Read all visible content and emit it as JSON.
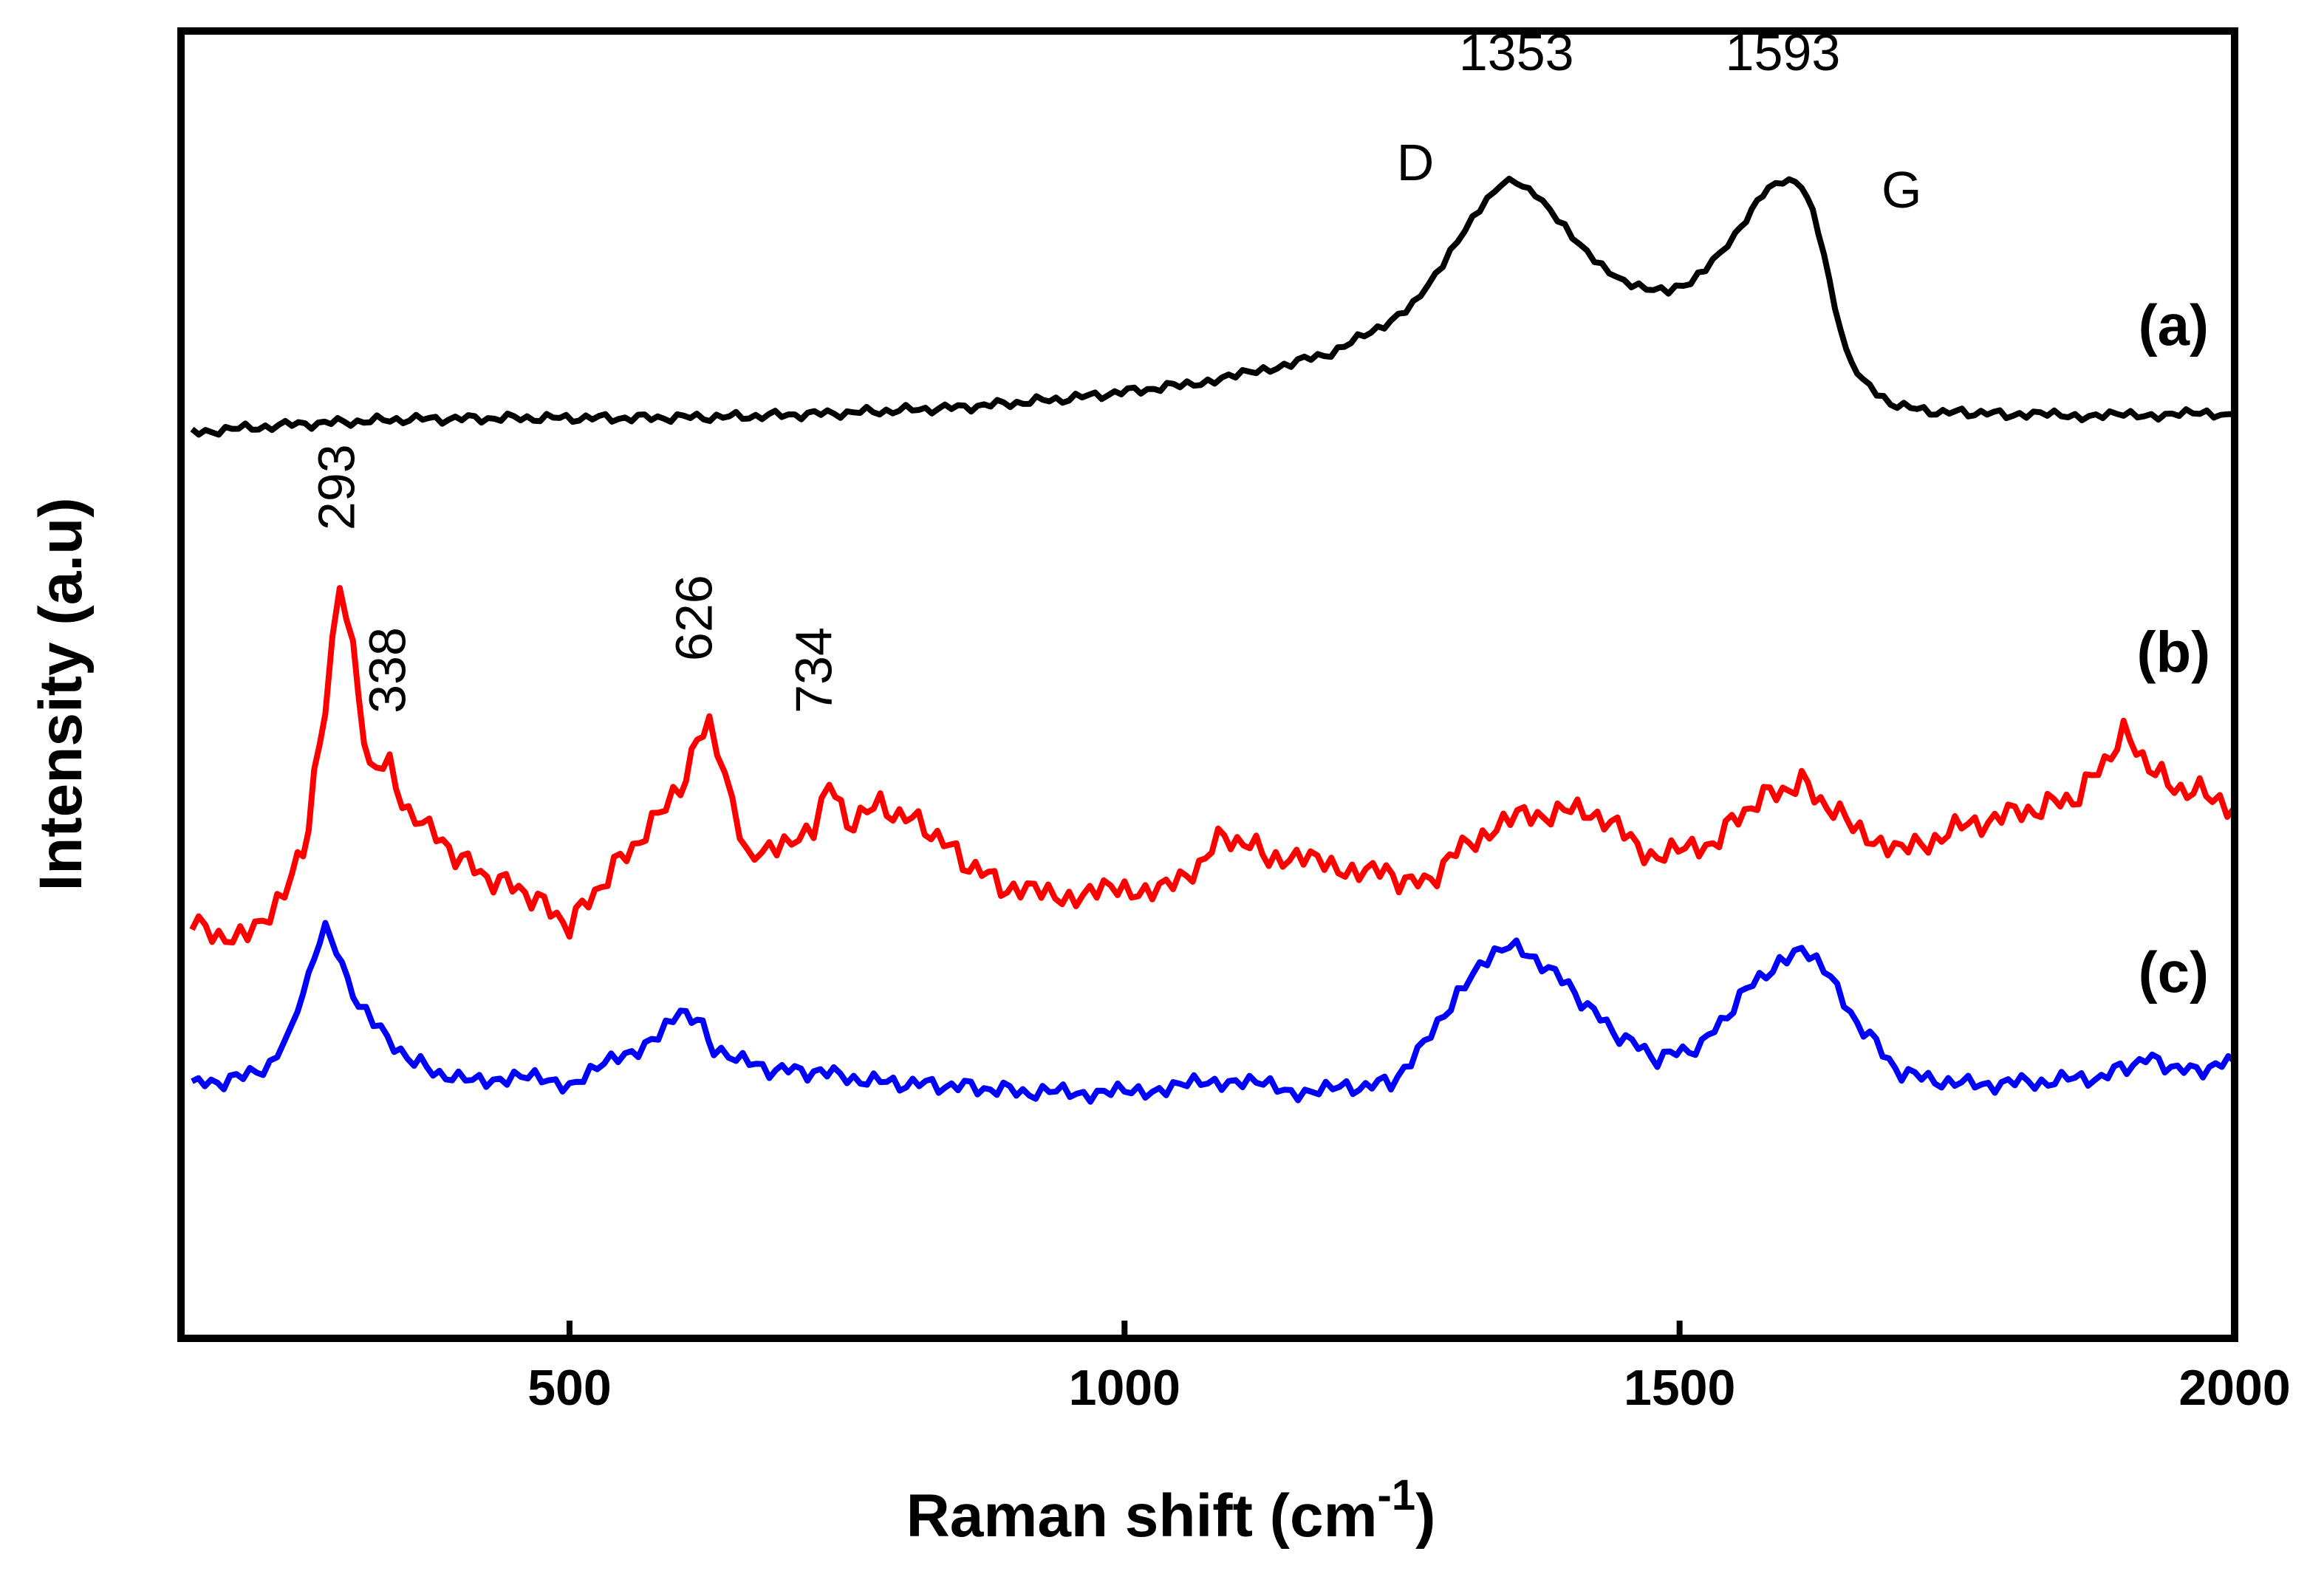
{
  "chart_data": {
    "type": "line",
    "title": "",
    "xlabel": "Raman shift (cm",
    "xlabel_superscript": "-1",
    "xlabel_close": ")",
    "ylabel": "Intensity (a.u)",
    "xlim": [
      150,
      2000
    ],
    "ylim": [
      0,
      100
    ],
    "yticks_visible": false,
    "grid": false,
    "x_ticks": [
      {
        "value": 500,
        "label": "500"
      },
      {
        "value": 1000,
        "label": "1000"
      },
      {
        "value": 1500,
        "label": "1500"
      },
      {
        "value": 2000,
        "label": "2000"
      }
    ],
    "series": [
      {
        "name": "(a)",
        "color": "#000000",
        "x": [
          160,
          250,
          350,
          450,
          550,
          650,
          750,
          850,
          950,
          1050,
          1100,
          1150,
          1180,
          1210,
          1240,
          1260,
          1280,
          1300,
          1320,
          1340,
          1353,
          1370,
          1390,
          1410,
          1430,
          1450,
          1470,
          1490,
          1510,
          1530,
          1550,
          1565,
          1580,
          1593,
          1610,
          1620,
          1630,
          1640,
          1650,
          1665,
          1690,
          1720,
          1760,
          1800,
          1850,
          1900,
          1950,
          2000
        ],
        "values": [
          69.3,
          69.9,
          70.3,
          70.4,
          70.4,
          70.5,
          70.8,
          71.2,
          71.9,
          72.9,
          73.6,
          74.6,
          75.2,
          76.4,
          77.9,
          79.1,
          81.2,
          83.8,
          86.3,
          88.3,
          88.6,
          87.5,
          85.5,
          83.5,
          81.9,
          80.8,
          80.4,
          80.3,
          80.9,
          82.5,
          84.3,
          86.3,
          88.1,
          88.7,
          88.1,
          86.3,
          82.9,
          78.9,
          75.5,
          73.2,
          71.6,
          70.9,
          70.8,
          70.7,
          70.6,
          70.6,
          70.7,
          70.7
        ]
      },
      {
        "name": "(b)",
        "color": "#ff0000",
        "x": [
          160,
          190,
          210,
          230,
          250,
          265,
          280,
          293,
          305,
          320,
          338,
          355,
          380,
          420,
          460,
          500,
          540,
          580,
          600,
          615,
          626,
          640,
          660,
          680,
          700,
          720,
          734,
          750,
          780,
          820,
          860,
          900,
          950,
          1000,
          1050,
          1090,
          1130,
          1180,
          1230,
          1270,
          1310,
          1360,
          1420,
          1480,
          1530,
          1570,
          1610,
          1650,
          1700,
          1760,
          1820,
          1860,
          1900,
          1940,
          1980,
          2000
        ],
        "values": [
          31.6,
          30.8,
          31.3,
          32.2,
          35.0,
          39.2,
          48.8,
          58.0,
          52.3,
          43.4,
          43.7,
          40.2,
          38.3,
          35.5,
          34.2,
          31.6,
          36.0,
          39.8,
          42.0,
          45.6,
          47.3,
          43.5,
          37.2,
          37.8,
          38.1,
          38.8,
          42.5,
          39.5,
          40.7,
          39.2,
          36.2,
          34.2,
          33.9,
          34.3,
          34.7,
          38.5,
          37.0,
          36.3,
          35.6,
          34.7,
          38.1,
          40.0,
          40.4,
          36.7,
          38.0,
          41.2,
          42.5,
          39.5,
          37.2,
          39.3,
          40.5,
          41.5,
          46.2,
          42.3,
          41.5,
          40.6
        ]
      },
      {
        "name": "(c)",
        "color": "#0000ff",
        "x": [
          160,
          200,
          230,
          250,
          265,
          280,
          295,
          310,
          330,
          360,
          400,
          450,
          500,
          550,
          580,
          600,
          615,
          630,
          650,
          680,
          720,
          780,
          850,
          920,
          1000,
          1050,
          1100,
          1150,
          1200,
          1240,
          1270,
          1300,
          1320,
          1340,
          1353,
          1370,
          1400,
          1440,
          1480,
          1520,
          1560,
          1590,
          1610,
          1630,
          1660,
          1700,
          1760,
          1820,
          1880,
          1920,
          1960,
          2000
        ],
        "values": [
          19.4,
          19.8,
          21.0,
          23.8,
          27.8,
          31.6,
          28.6,
          25.3,
          23.5,
          21.1,
          19.7,
          20.0,
          19.5,
          21.7,
          23.0,
          24.8,
          24.5,
          22.2,
          21.3,
          20.6,
          20.4,
          19.6,
          19.3,
          18.8,
          18.8,
          19.3,
          19.8,
          18.9,
          19.1,
          19.6,
          22.4,
          26.5,
          28.5,
          29.7,
          29.8,
          29.1,
          26.9,
          23.5,
          21.4,
          22.4,
          26.6,
          28.9,
          29.8,
          28.2,
          24.2,
          20.2,
          19.4,
          19.6,
          20.0,
          21.4,
          20.4,
          21.2
        ]
      }
    ],
    "series_labels": [
      {
        "text": "(a)",
        "x": 1945,
        "y": 76.0
      },
      {
        "text": "(b)",
        "x": 1945,
        "y": 51.0
      },
      {
        "text": "(c)",
        "x": 1945,
        "y": 26.5
      }
    ],
    "annotations": [
      {
        "text": "1353",
        "x": 1353,
        "y": 97.0,
        "rotate": false
      },
      {
        "text": "1593",
        "x": 1593,
        "y": 97.0,
        "rotate": false
      },
      {
        "text": "D",
        "x": 1262,
        "y": 88.6,
        "rotate": false
      },
      {
        "text": "G",
        "x": 1700,
        "y": 86.5,
        "rotate": false
      },
      {
        "text": "293",
        "x": 306,
        "y": 61.8,
        "rotate": true
      },
      {
        "text": "338",
        "x": 352,
        "y": 47.8,
        "rotate": true
      },
      {
        "text": "626",
        "x": 628,
        "y": 51.8,
        "rotate": true
      },
      {
        "text": "734",
        "x": 736,
        "y": 47.8,
        "rotate": true
      }
    ]
  }
}
